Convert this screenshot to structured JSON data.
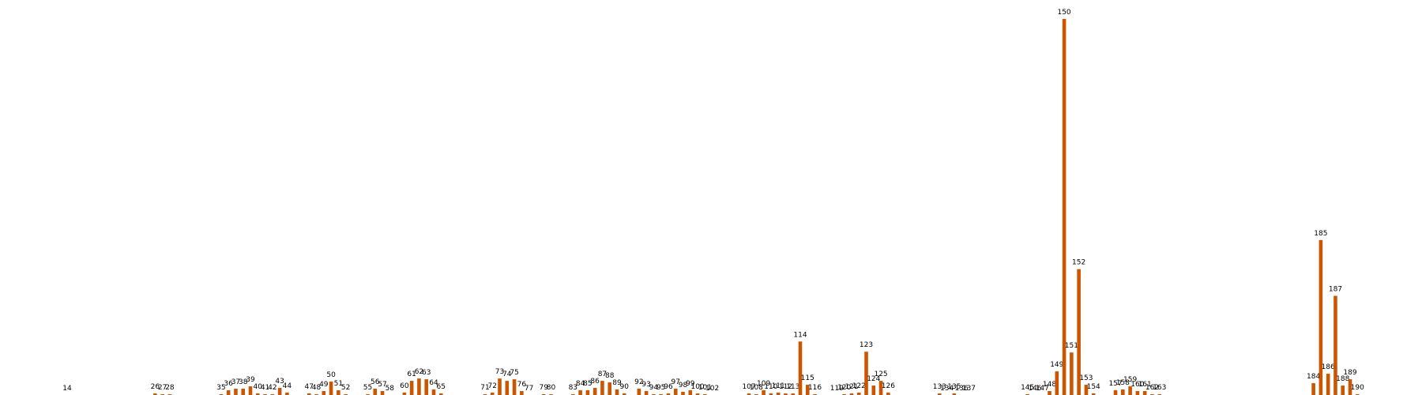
{
  "chart_data": {
    "type": "bar",
    "title": "",
    "xlabel": "",
    "ylabel": "",
    "x": [
      14,
      26,
      27,
      28,
      35,
      36,
      37,
      38,
      39,
      40,
      41,
      42,
      43,
      44,
      47,
      48,
      49,
      50,
      51,
      52,
      55,
      56,
      57,
      58,
      60,
      61,
      62,
      63,
      64,
      65,
      71,
      72,
      73,
      74,
      75,
      76,
      77,
      79,
      80,
      83,
      84,
      85,
      86,
      87,
      88,
      89,
      90,
      92,
      93,
      94,
      95,
      96,
      97,
      98,
      99,
      100,
      101,
      102,
      107,
      108,
      109,
      110,
      111,
      112,
      113,
      114,
      115,
      116,
      119,
      120,
      121,
      122,
      123,
      124,
      125,
      126,
      133,
      134,
      135,
      136,
      137,
      145,
      146,
      147,
      148,
      149,
      150,
      151,
      152,
      153,
      154,
      157,
      158,
      159,
      160,
      161,
      162,
      163,
      184,
      185,
      186,
      187,
      188,
      189,
      190
    ],
    "labels": [
      "14",
      "26",
      "27",
      "28",
      "35",
      "36",
      "37",
      "38",
      "39",
      "40",
      "41",
      "42",
      "43",
      "44",
      "47",
      "48",
      "49",
      "50",
      "51",
      "52",
      "55",
      "56",
      "57",
      "58",
      "60",
      "61",
      "62",
      "63",
      "64",
      "65",
      "71",
      "72",
      "73",
      "74",
      "75",
      "76",
      "77",
      "79",
      "80",
      "83",
      "84",
      "85",
      "86",
      "87",
      "88",
      "89",
      "90",
      "92",
      "93",
      "94",
      "95",
      "96",
      "97",
      "98",
      "99",
      "100",
      "101",
      "102",
      "107",
      "108",
      "109",
      "110",
      "111",
      "112",
      "113",
      "114",
      "115",
      "116",
      "119",
      "120",
      "121",
      "122",
      "123",
      "124",
      "125",
      "126",
      "133",
      "134",
      "135",
      "136",
      "137",
      "145",
      "146",
      "147",
      "148",
      "149",
      "150",
      "151",
      "152",
      "153",
      "154",
      "157",
      "158",
      "159",
      "160",
      "161",
      "162",
      "163",
      "184",
      "185",
      "186",
      "187",
      "188",
      "189",
      "190"
    ],
    "values": [
      0,
      2,
      1,
      1,
      1,
      6,
      8,
      8,
      11,
      2,
      1,
      1,
      9,
      3,
      2,
      1,
      5,
      17,
      6,
      1,
      1,
      8,
      5,
      0,
      3,
      18,
      21,
      20,
      7,
      2,
      1,
      3,
      21,
      18,
      20,
      5,
      0,
      1,
      1,
      1,
      6,
      6,
      9,
      18,
      16,
      7,
      2,
      8,
      5,
      1,
      1,
      2,
      8,
      4,
      6,
      2,
      1,
      0,
      2,
      1,
      6,
      2,
      3,
      2,
      2,
      68,
      13,
      1,
      0,
      1,
      2,
      3,
      55,
      12,
      18,
      3,
      2,
      0,
      2,
      0,
      0,
      1,
      0,
      0,
      5,
      30,
      478,
      54,
      160,
      13,
      2,
      6,
      7,
      11,
      5,
      5,
      1,
      1,
      15,
      197,
      27,
      126,
      12,
      20,
      1
    ],
    "ylim": [
      0,
      478
    ],
    "grid": false,
    "legend": false,
    "bar_color": "#CC5500"
  }
}
